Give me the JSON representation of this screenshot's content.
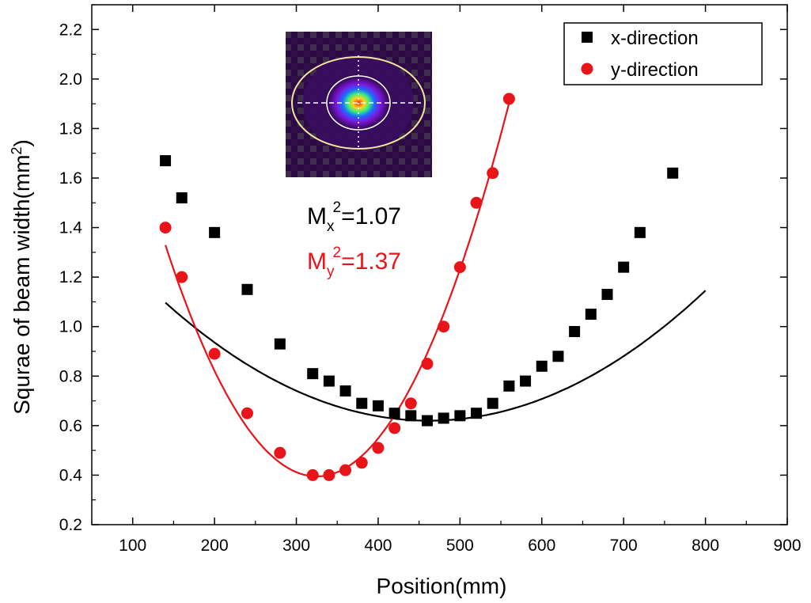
{
  "chart_data": {
    "type": "scatter",
    "title": "",
    "xlabel": "Position(mm)",
    "ylabel_main": "Squrae of beam width(mm",
    "ylabel_sup": "2",
    "ylabel_close": ")",
    "xlim": [
      50,
      900
    ],
    "ylim": [
      0.2,
      2.3
    ],
    "xticks": [
      100,
      200,
      300,
      400,
      500,
      600,
      700,
      800,
      900
    ],
    "yticks": [
      0.2,
      0.4,
      0.6,
      0.8,
      1.0,
      1.2,
      1.4,
      1.6,
      1.8,
      2.0,
      2.2
    ],
    "grid": false,
    "legend_position": "top-right",
    "series": [
      {
        "name": "x-direction",
        "marker": "square",
        "color": "#000000",
        "x": [
          140,
          160,
          200,
          240,
          280,
          320,
          340,
          360,
          380,
          400,
          420,
          440,
          460,
          480,
          500,
          520,
          540,
          560,
          580,
          600,
          620,
          640,
          660,
          680,
          700,
          720,
          760
        ],
        "y": [
          1.67,
          1.52,
          1.38,
          1.15,
          0.93,
          0.81,
          0.78,
          0.74,
          0.69,
          0.68,
          0.65,
          0.64,
          0.62,
          0.63,
          0.64,
          0.65,
          0.69,
          0.76,
          0.78,
          0.84,
          0.88,
          0.98,
          1.05,
          1.13,
          1.24,
          1.38,
          1.62
        ],
        "fit": {
          "x0": 462,
          "a": 0.62,
          "b": 4.6e-06,
          "x_start": 140,
          "x_end": 800
        }
      },
      {
        "name": "y-direction",
        "marker": "circle",
        "color": "#e8141a",
        "x": [
          140,
          160,
          200,
          240,
          280,
          320,
          340,
          360,
          380,
          400,
          420,
          440,
          460,
          480,
          500,
          520,
          540,
          560
        ],
        "y": [
          1.4,
          1.2,
          0.89,
          0.65,
          0.49,
          0.4,
          0.4,
          0.42,
          0.45,
          0.51,
          0.59,
          0.69,
          0.85,
          1.0,
          1.24,
          1.5,
          1.62,
          1.92
        ],
        "fit": {
          "x0": 325,
          "a": 0.395,
          "b": 2.73e-05,
          "x_start": 140,
          "x_end": 562
        }
      }
    ],
    "annotations": [
      {
        "main": "M",
        "sub": "x",
        "sup": "2",
        "value": "=1.07",
        "color": "#000000"
      },
      {
        "main": "M",
        "sub": "y",
        "sup": "2",
        "value": "=1.37",
        "color": "#e8141a"
      }
    ],
    "inset": "beam-profile-image"
  }
}
